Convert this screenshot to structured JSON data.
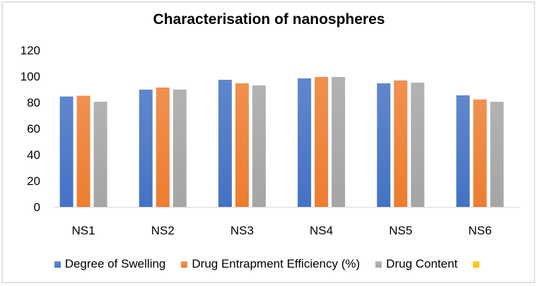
{
  "chart_data": {
    "type": "bar",
    "title": "Characterisation of nanospheres",
    "xlabel": "",
    "ylabel": "",
    "categories": [
      "NS1",
      "NS2",
      "NS3",
      "NS4",
      "NS5",
      "NS6"
    ],
    "series": [
      {
        "name": "Degree of Swelling",
        "color": "#4472C4",
        "values": [
          84.5,
          89.8,
          97.3,
          98.4,
          94.6,
          85.4
        ]
      },
      {
        "name": "Drug Entrapment Efficiency (%)",
        "color": "#ED7D31",
        "values": [
          85.1,
          91.4,
          94.6,
          99.5,
          96.8,
          82.2
        ]
      },
      {
        "name": "Drug Content",
        "color": "#A5A5A5",
        "values": [
          80.5,
          89.8,
          93.0,
          99.5,
          95.1,
          80.5
        ]
      },
      {
        "name": "",
        "color": "#FFC000",
        "values": [
          0,
          0,
          0,
          0,
          0,
          0
        ]
      }
    ],
    "ylim": [
      0,
      120
    ],
    "yticks": [
      0,
      20,
      40,
      60,
      80,
      100,
      120
    ],
    "grid": false,
    "legend": "bottom"
  }
}
